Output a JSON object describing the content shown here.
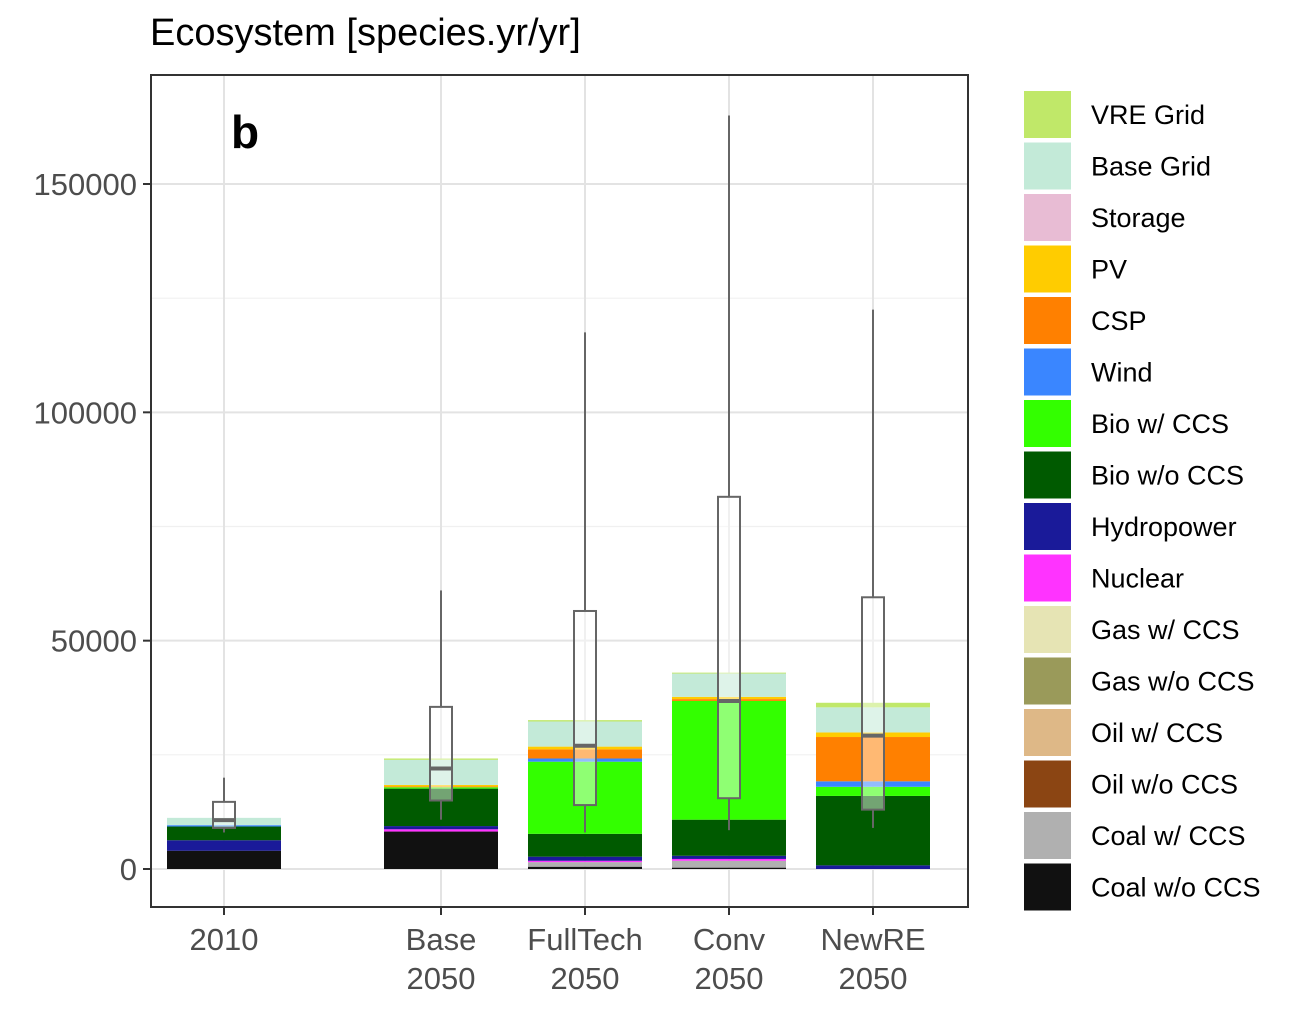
{
  "chart_data": {
    "type": "bar",
    "stacked": true,
    "title": "Ecosystem [species.yr/yr]",
    "panel_label": "b",
    "xlabel": "",
    "ylabel": "",
    "ylim": [
      -8000,
      172000
    ],
    "yticks": [
      0,
      50000,
      100000,
      150000
    ],
    "ytick_labels": [
      "0",
      "50000",
      "100000",
      "150000"
    ],
    "grid": true,
    "legend_position": "right",
    "categories": [
      {
        "key": "2010",
        "lines": [
          "2010"
        ]
      },
      {
        "key": "Base 2050",
        "lines": [
          "Base",
          "2050"
        ]
      },
      {
        "key": "FullTech 2050",
        "lines": [
          "FullTech",
          "2050"
        ]
      },
      {
        "key": "Conv 2050",
        "lines": [
          "Conv",
          "2050"
        ]
      },
      {
        "key": "NewRE 2050",
        "lines": [
          "NewRE",
          "2050"
        ]
      }
    ],
    "series": [
      {
        "name": "Coal w/o CCS",
        "color": "#111111",
        "values": [
          4000,
          8200,
          500,
          300,
          0
        ]
      },
      {
        "name": "Coal w/ CCS",
        "color": "#b0b0b0",
        "values": [
          0,
          0,
          1000,
          1500,
          0
        ]
      },
      {
        "name": "Oil w/o CCS",
        "color": "#8b4513",
        "values": [
          0,
          0,
          0,
          0,
          0
        ]
      },
      {
        "name": "Oil w/ CCS",
        "color": "#deb887",
        "values": [
          0,
          0,
          0,
          0,
          0
        ]
      },
      {
        "name": "Gas w/o CCS",
        "color": "#9a9a5a",
        "values": [
          0,
          0,
          0,
          0,
          0
        ]
      },
      {
        "name": "Gas w/ CCS",
        "color": "#e6e4b4",
        "values": [
          0,
          0,
          0,
          0,
          0
        ]
      },
      {
        "name": "Nuclear",
        "color": "#ff33ff",
        "values": [
          0,
          500,
          300,
          400,
          0
        ]
      },
      {
        "name": "Hydropower",
        "color": "#1a1a99",
        "values": [
          2300,
          700,
          900,
          700,
          800
        ]
      },
      {
        "name": "Bio w/o CCS",
        "color": "#005a00",
        "values": [
          3000,
          8200,
          5000,
          7900,
          15200
        ]
      },
      {
        "name": "Bio w/ CCS",
        "color": "#33ff00",
        "values": [
          0,
          300,
          15800,
          26000,
          2000
        ]
      },
      {
        "name": "Wind",
        "color": "#3a86ff",
        "values": [
          300,
          0,
          700,
          0,
          1200
        ]
      },
      {
        "name": "CSP",
        "color": "#ff8000",
        "values": [
          0,
          200,
          2000,
          400,
          9700
        ]
      },
      {
        "name": "PV",
        "color": "#ffcc00",
        "values": [
          0,
          300,
          600,
          500,
          1000
        ]
      },
      {
        "name": "Storage",
        "color": "#e8bcd4",
        "values": [
          0,
          0,
          0,
          0,
          0
        ]
      },
      {
        "name": "Base Grid",
        "color": "#c3ead8",
        "values": [
          1600,
          5500,
          5500,
          5100,
          5500
        ]
      },
      {
        "name": "VRE Grid",
        "color": "#c0e869",
        "values": [
          0,
          300,
          300,
          200,
          1000
        ]
      }
    ],
    "boxplots": [
      {
        "category": "2010",
        "min": 8000,
        "q1": 9000,
        "median": 10700,
        "q3": 14700,
        "max": 20000
      },
      {
        "category": "Base 2050",
        "min": 10800,
        "q1": 15000,
        "median": 22000,
        "q3": 35500,
        "max": 61000
      },
      {
        "category": "FullTech 2050",
        "min": 8000,
        "q1": 14000,
        "median": 27000,
        "q3": 56500,
        "max": 117500
      },
      {
        "category": "Conv 2050",
        "min": 8500,
        "q1": 15500,
        "median": 36800,
        "q3": 81500,
        "max": 165000
      },
      {
        "category": "NewRE 2050",
        "min": 9000,
        "q1": 13000,
        "median": 29200,
        "q3": 59500,
        "max": 122500
      }
    ]
  }
}
